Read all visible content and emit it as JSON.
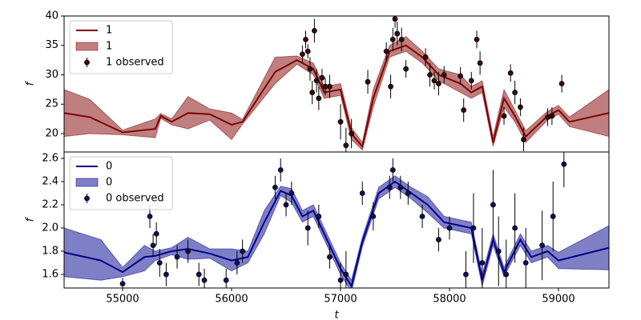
{
  "chart_data": [
    {
      "type": "line",
      "ylabel": "f",
      "xlim": [
        54463,
        59463
      ],
      "ylim": [
        16.87,
        40
      ],
      "yticks": [
        20,
        25,
        30,
        35,
        40
      ],
      "legend": "upper left",
      "series": [
        {
          "name": "1",
          "color": "#800000",
          "x": [
            54463,
            54700,
            55000,
            55300,
            55350,
            55450,
            55600,
            55800,
            56000,
            56100,
            56400,
            56600,
            56750,
            56850,
            57000,
            57100,
            57200,
            57300,
            57450,
            57600,
            57750,
            57900,
            58100,
            58200,
            58300,
            58400,
            58500,
            58600,
            58700,
            58900,
            59000,
            59100,
            59463
          ],
          "values": [
            23.5,
            22.8,
            20.2,
            20.8,
            23,
            22,
            23.5,
            23.3,
            21.5,
            22,
            30.5,
            32.5,
            31,
            27,
            27.5,
            20,
            17.8,
            26,
            34,
            35,
            33,
            30,
            28.5,
            27,
            28,
            18.5,
            26,
            23,
            19.5,
            23,
            24,
            22,
            23.5
          ]
        }
      ],
      "band": {
        "name": "1",
        "color": "#800000",
        "lower": [
          19.5,
          20,
          19.8,
          19.3,
          22.6,
          21.5,
          20.8,
          22.3,
          19,
          21.6,
          28.5,
          31.8,
          30,
          26,
          26.5,
          19,
          17.2,
          24.5,
          33,
          34,
          32,
          29,
          27,
          26,
          27,
          17.8,
          24.5,
          22,
          18.5,
          22.3,
          23.3,
          21.2,
          19.5
        ],
        "upper": [
          27.5,
          25.8,
          20.6,
          22.5,
          23.4,
          22.5,
          26.3,
          24.2,
          23.5,
          22.4,
          33,
          33.2,
          32,
          28,
          28.5,
          21,
          18.5,
          27.5,
          35,
          36.5,
          34,
          31,
          30,
          28,
          29,
          19.5,
          27.5,
          24,
          20.5,
          23.8,
          24.8,
          22.8,
          27.5
        ]
      },
      "observed": {
        "name": "1 observed",
        "color": "#3a0a0a",
        "x": [
          56650,
          56680,
          56700,
          56720,
          56740,
          56760,
          56780,
          56800,
          56830,
          56860,
          56900,
          57000,
          57050,
          57100,
          57250,
          57420,
          57460,
          57480,
          57500,
          57520,
          57560,
          57600,
          57780,
          57820,
          57860,
          57900,
          57950,
          58100,
          58130,
          58200,
          58250,
          58280,
          58500,
          58560,
          58600,
          58650,
          58680,
          58900,
          58940,
          59030
        ],
        "values": [
          33.5,
          36,
          34,
          31,
          27,
          37.5,
          29,
          26,
          29.5,
          28,
          28,
          22,
          18,
          20,
          28.8,
          34,
          28,
          36,
          39.5,
          37,
          36,
          31,
          33,
          30,
          29,
          28.5,
          30,
          29.8,
          24,
          29,
          36,
          32,
          23,
          30.3,
          27,
          24.5,
          19,
          22.8,
          23,
          28.5
        ],
        "errors": [
          1.5,
          1.5,
          1.2,
          2,
          2,
          2,
          2,
          2,
          1.5,
          1.5,
          2,
          3,
          3,
          2.5,
          2,
          1.5,
          2,
          2,
          1.5,
          2,
          2,
          1.5,
          1.5,
          2,
          1.5,
          2,
          1.5,
          1.5,
          2,
          1.5,
          1.5,
          2,
          1.5,
          1.5,
          2,
          1.5,
          2,
          1.5,
          1.5,
          1.5
        ]
      }
    },
    {
      "type": "line",
      "ylabel": "f",
      "xlabel": "t",
      "xlim": [
        54463,
        59463
      ],
      "xticks": [
        55000,
        56000,
        57000,
        58000,
        59000
      ],
      "ylim": [
        1.483,
        2.655
      ],
      "yticks": [
        1.6,
        1.8,
        {
          "value": 2,
          "label": "2.0"
        },
        2.2,
        2.4,
        2.6
      ],
      "legend": "upper left",
      "series": [
        {
          "name": "0",
          "color": "#00008b",
          "x": [
            54463,
            54800,
            55000,
            55200,
            55300,
            55450,
            55600,
            55800,
            56000,
            56150,
            56300,
            56450,
            56550,
            56650,
            56750,
            56850,
            57000,
            57100,
            57200,
            57350,
            57500,
            57650,
            57800,
            57950,
            58100,
            58200,
            58300,
            58400,
            58500,
            58650,
            58750,
            58900,
            59000,
            59463
          ],
          "values": [
            1.79,
            1.72,
            1.62,
            1.75,
            1.76,
            1.8,
            1.82,
            1.78,
            1.72,
            1.75,
            2.05,
            2.32,
            2.28,
            2.1,
            2.15,
            1.95,
            1.65,
            1.5,
            1.88,
            2.3,
            2.4,
            2.3,
            2.2,
            2.05,
            2.02,
            2,
            1.55,
            1.9,
            1.62,
            1.9,
            1.75,
            1.8,
            1.72,
            1.83
          ]
        }
      ],
      "band": {
        "name": "0",
        "color": "#00008b",
        "lower": [
          1.58,
          1.55,
          1.58,
          1.63,
          1.72,
          1.77,
          1.73,
          1.74,
          1.63,
          1.7,
          1.95,
          2.28,
          2.22,
          2.05,
          2.1,
          1.9,
          1.6,
          1.45,
          1.84,
          2.25,
          2.35,
          2.25,
          2.13,
          2,
          1.97,
          1.95,
          1.5,
          1.85,
          1.58,
          1.85,
          1.7,
          1.75,
          1.65,
          1.64
        ],
        "upper": [
          2,
          1.9,
          1.66,
          1.85,
          1.8,
          1.83,
          1.92,
          1.82,
          1.82,
          1.8,
          2.15,
          2.36,
          2.34,
          2.15,
          2.2,
          2,
          1.7,
          1.55,
          1.92,
          2.35,
          2.45,
          2.35,
          2.27,
          2.1,
          2.07,
          2.05,
          1.6,
          1.95,
          1.66,
          1.95,
          1.8,
          1.85,
          1.79,
          2.02
        ]
      },
      "observed": {
        "name": "0 observed",
        "color": "#10105a",
        "x": [
          55000,
          55250,
          55280,
          55310,
          55340,
          55400,
          55500,
          55600,
          55700,
          55750,
          55950,
          56050,
          56100,
          56400,
          56450,
          56500,
          56550,
          56700,
          56800,
          56900,
          57000,
          57050,
          57200,
          57300,
          57450,
          57480,
          57550,
          57620,
          57750,
          57900,
          58000,
          58150,
          58220,
          58300,
          58400,
          58450,
          58520,
          58600,
          58700,
          58850,
          58950,
          59050
        ],
        "values": [
          1.52,
          2.1,
          1.85,
          1.95,
          1.7,
          1.6,
          1.75,
          1.8,
          1.6,
          1.55,
          1.55,
          1.7,
          1.8,
          2.35,
          2.5,
          2.2,
          2.3,
          2,
          2.1,
          1.75,
          1.55,
          1.6,
          2.3,
          2.1,
          2.35,
          2.5,
          2.35,
          2.3,
          2.1,
          1.9,
          2,
          1.6,
          2,
          1.7,
          2.2,
          1.8,
          1.6,
          2,
          1.7,
          1.85,
          2.1,
          2.55
        ],
        "errors": [
          0.05,
          0.1,
          0.1,
          0.1,
          0.12,
          0.1,
          0.1,
          0.1,
          0.1,
          0.1,
          0.1,
          0.1,
          0.1,
          0.1,
          0.1,
          0.1,
          0.1,
          0.15,
          0.1,
          0.1,
          0.15,
          0.2,
          0.1,
          0.12,
          0.1,
          0.1,
          0.1,
          0.1,
          0.1,
          0.1,
          0.1,
          0.2,
          0.3,
          0.3,
          0.3,
          0.3,
          0.3,
          0.3,
          0.3,
          0.3,
          0.3,
          0.2
        ]
      }
    }
  ]
}
